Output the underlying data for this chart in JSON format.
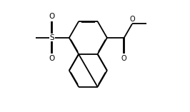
{
  "bg_color": "#ffffff",
  "line_color": "#000000",
  "line_width": 1.3,
  "dbo": 0.012,
  "figsize": [
    2.66,
    1.57
  ],
  "dpi": 100,
  "xlim": [
    -1.8,
    2.2
  ],
  "ylim": [
    -1.7,
    1.5
  ]
}
